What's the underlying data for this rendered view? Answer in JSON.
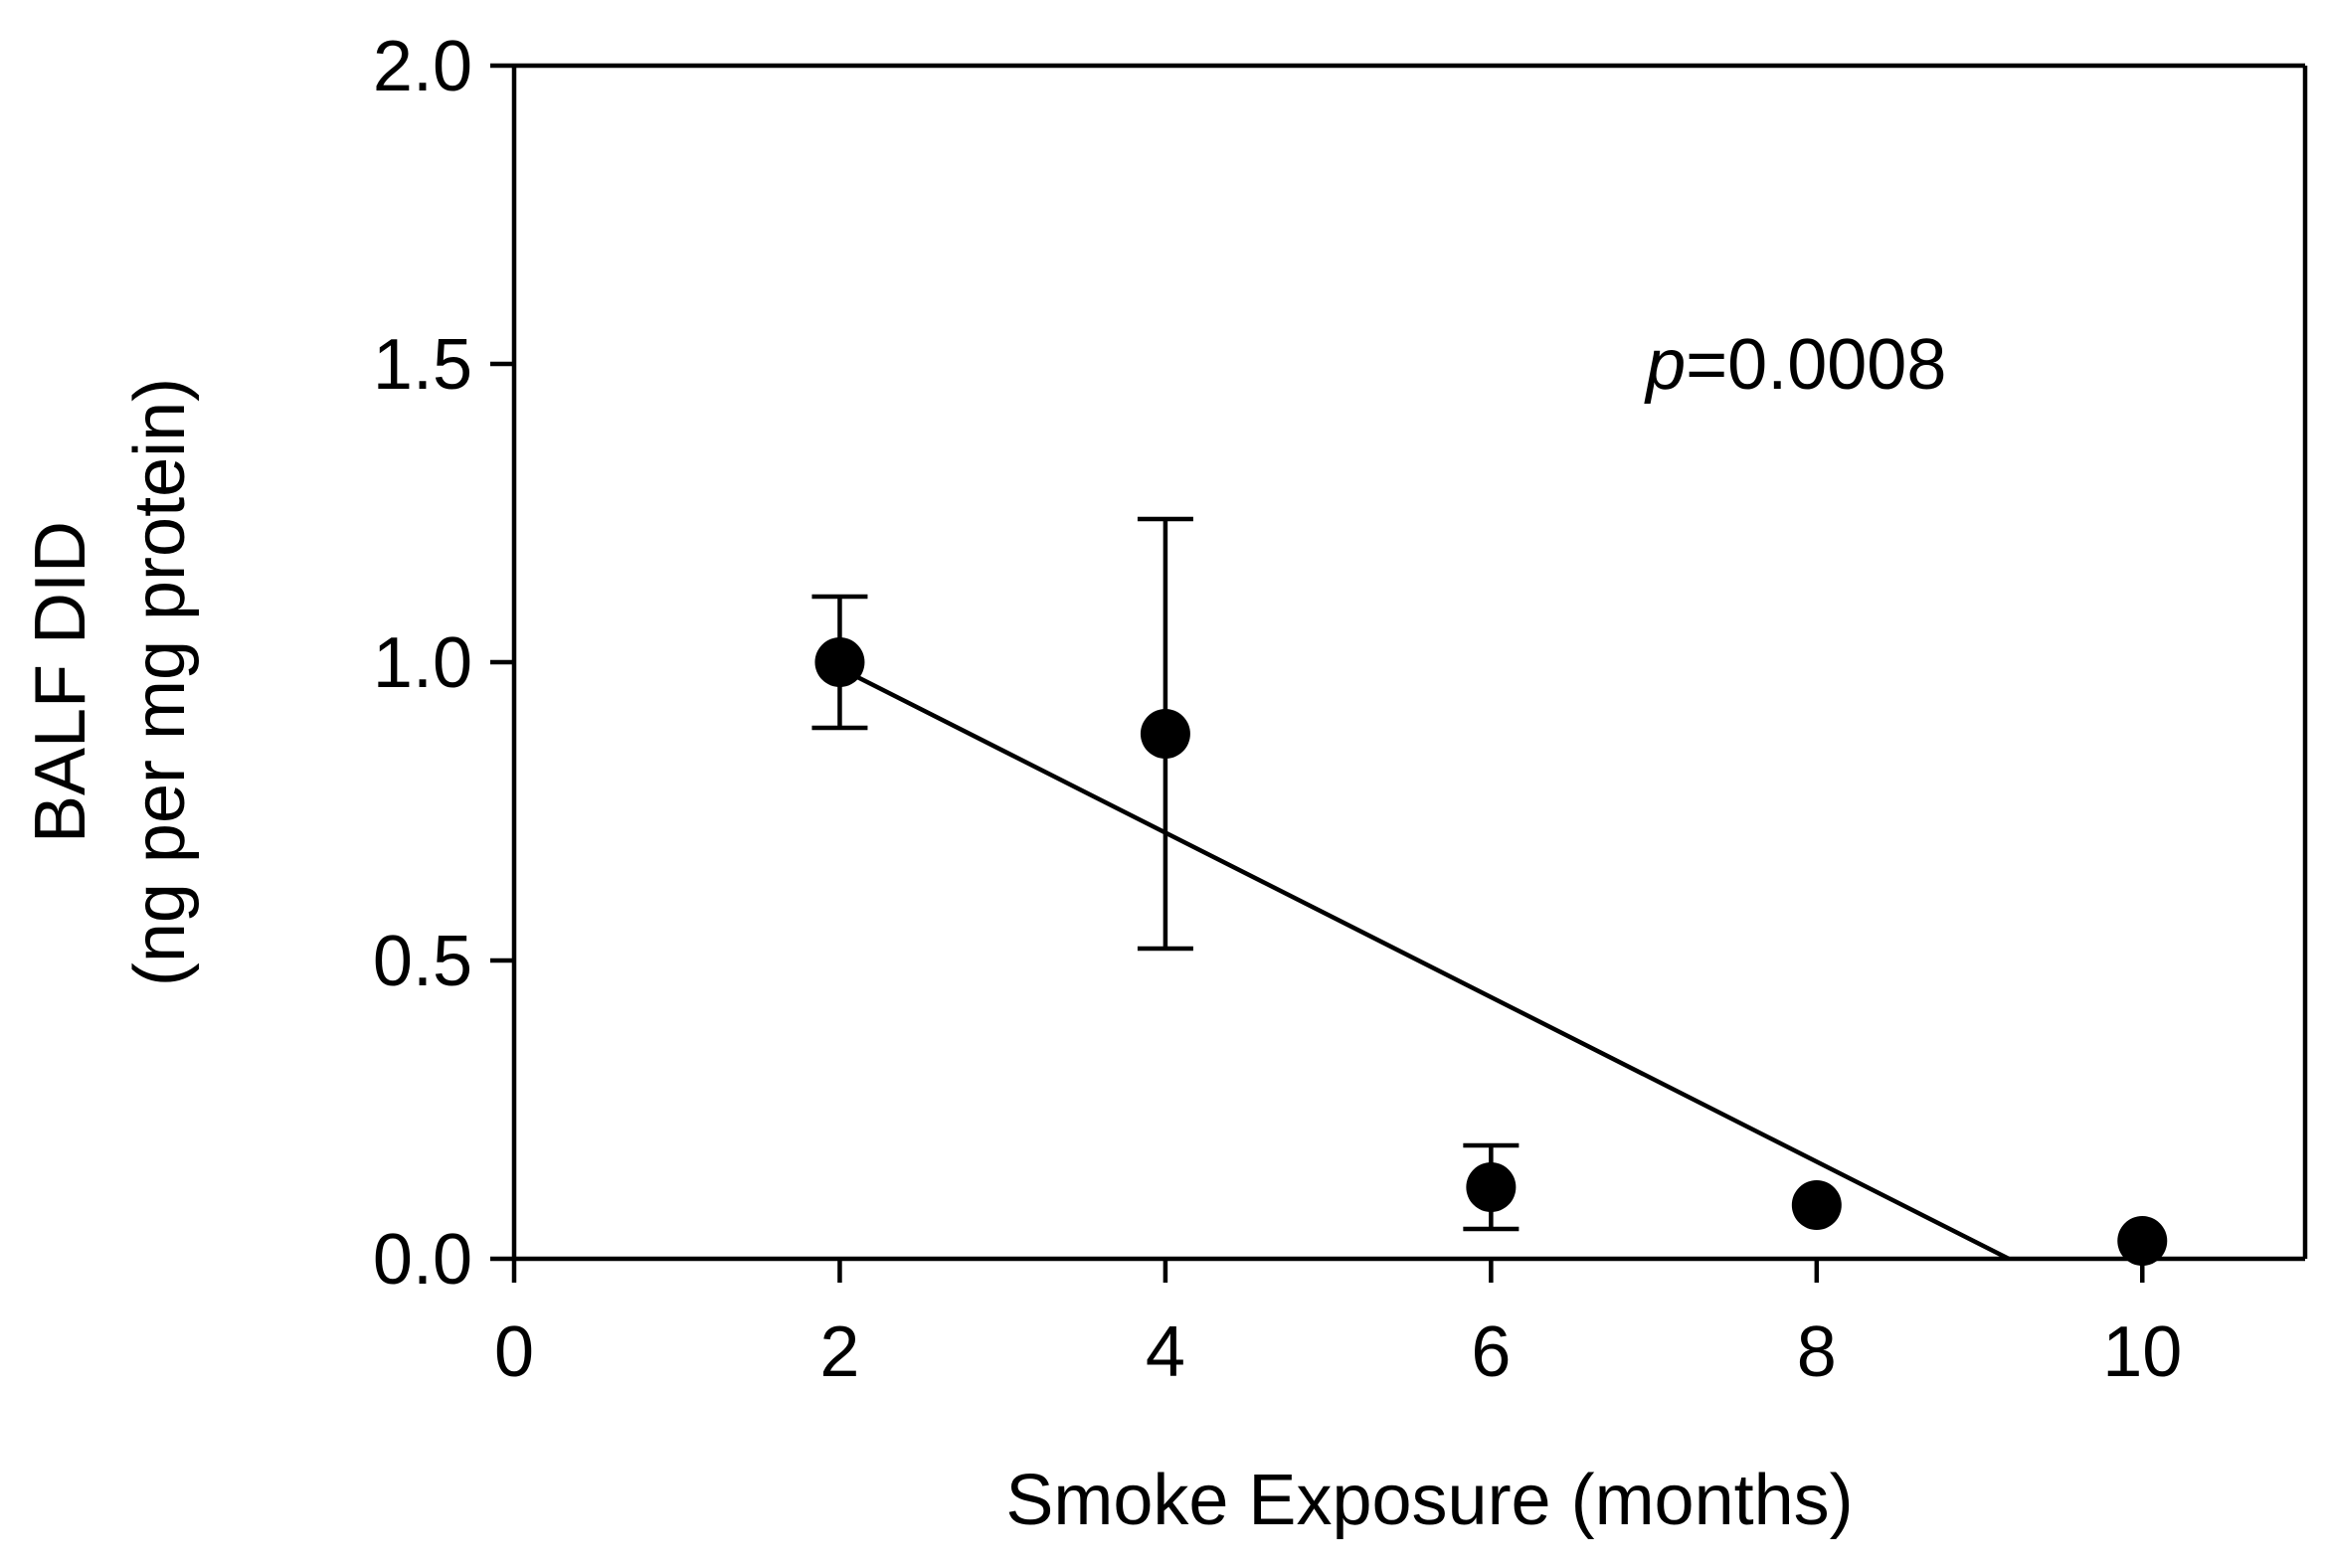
{
  "chart_data": {
    "type": "scatter",
    "title": "",
    "xlabel": "Smoke Exposure (months)",
    "ylabel_line1": "BALF DID",
    "ylabel_line2": "(ng per mg protein)",
    "xlim": [
      0,
      11
    ],
    "ylim": [
      0,
      2.0
    ],
    "xticks": [
      0,
      2,
      4,
      6,
      8,
      10
    ],
    "xtick_labels": [
      "0",
      "2",
      "4",
      "6",
      "8",
      "10"
    ],
    "yticks": [
      0,
      0.5,
      1.0,
      1.5,
      2.0
    ],
    "ytick_labels": [
      "0.0",
      "0.5",
      "1.0",
      "1.5",
      "2.0"
    ],
    "grid": false,
    "legend": "none",
    "points": [
      {
        "x": 2,
        "y": 1.0,
        "err_low": 0.89,
        "err_high": 1.11
      },
      {
        "x": 4,
        "y": 0.88,
        "err_low": 0.52,
        "err_high": 1.24
      },
      {
        "x": 6,
        "y": 0.12,
        "err_low": 0.05,
        "err_high": 0.19
      },
      {
        "x": 8,
        "y": 0.09,
        "err_low": null,
        "err_high": null
      },
      {
        "x": 10,
        "y": 0.03,
        "err_low": null,
        "err_high": null
      }
    ],
    "fit_line": {
      "x_start": 2,
      "y_start": 0.99,
      "x_end": 9.18,
      "y_end": 0.0
    },
    "annotation": {
      "p_symbol": "p",
      "p_text": "=0.0008",
      "x": 7.0,
      "y": 1.5
    },
    "marker_color": "#000000",
    "line_color": "#000000"
  }
}
